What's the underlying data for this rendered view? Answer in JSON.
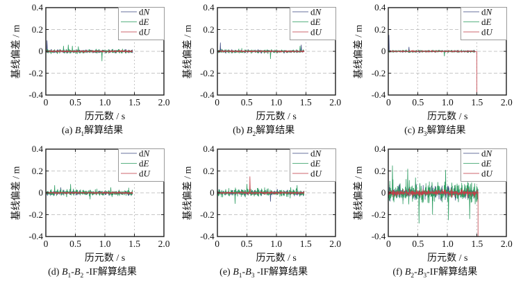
{
  "figure": {
    "ylabel": "基线偏差 / m",
    "xlabel": "历元数 / s",
    "colors": {
      "dN": "#414e85",
      "dE": "#2f9e63",
      "dU": "#c13f48",
      "grid": "#b5b5b5",
      "axis": "#1c1c1c",
      "legend_border": "#999999",
      "background": "#ffffff"
    },
    "axes": {
      "xlim": [
        0,
        2.0
      ],
      "ylim": [
        -0.4,
        0.4
      ],
      "xticks": [
        0,
        0.5,
        1.0,
        1.5,
        2.0
      ],
      "xtick_labels": [
        "0",
        "0.5",
        "1.0",
        "1.5",
        "2.0"
      ],
      "yticks": [
        0.4,
        0.2,
        0,
        -0.2,
        -0.4
      ],
      "ytick_labels": [
        "0.4",
        "0.2",
        "0",
        "-0.2",
        "-0.4"
      ],
      "grid_x": [
        0.5,
        1.0,
        1.5
      ],
      "grid_y": [
        -0.2,
        0,
        0.2
      ],
      "grid_on": true,
      "legend_position": "top-right"
    },
    "legend": [
      [
        {
          "t": "d"
        },
        {
          "t": "N",
          "i": true
        }
      ],
      [
        {
          "t": "d"
        },
        {
          "t": "E",
          "i": true
        }
      ],
      [
        {
          "t": "d"
        },
        {
          "t": "U",
          "i": true
        }
      ]
    ]
  },
  "chart_data": [
    {
      "id": "a",
      "type": "line",
      "caption": [
        {
          "t": "(a) "
        },
        {
          "t": "B",
          "i": true,
          "sub": "1"
        },
        {
          "t": "解算结果"
        }
      ],
      "xlim": [
        0,
        2.0
      ],
      "ylim": [
        -0.4,
        0.4
      ],
      "x_range": [
        0,
        1.47
      ],
      "seed": 3,
      "end_drop": null,
      "series": [
        {
          "name": "dN",
          "amp": 0.016,
          "spikes": [
            [
              0.02,
              0.1
            ]
          ]
        },
        {
          "name": "dE",
          "amp": 0.02,
          "spikes": [
            [
              0.3,
              0.05
            ],
            [
              0.38,
              0.06
            ],
            [
              0.45,
              0.05
            ],
            [
              0.55,
              0.045
            ],
            [
              0.95,
              -0.09
            ]
          ]
        },
        {
          "name": "dU",
          "amp": 0.007,
          "spikes": []
        }
      ]
    },
    {
      "id": "b",
      "type": "line",
      "caption": [
        {
          "t": "(b) "
        },
        {
          "t": "B",
          "i": true,
          "sub": "2"
        },
        {
          "t": "解算结果"
        }
      ],
      "xlim": [
        0,
        2.0
      ],
      "ylim": [
        -0.4,
        0.4
      ],
      "x_range": [
        0,
        1.47
      ],
      "seed": 7,
      "end_drop": null,
      "series": [
        {
          "name": "dN",
          "amp": 0.014,
          "spikes": [
            [
              0.05,
              0.08
            ],
            [
              1.42,
              0.06
            ]
          ]
        },
        {
          "name": "dE",
          "amp": 0.018,
          "spikes": [
            [
              0.9,
              -0.07
            ],
            [
              1.4,
              0.05
            ]
          ]
        },
        {
          "name": "dU",
          "amp": 0.007,
          "spikes": []
        }
      ]
    },
    {
      "id": "c",
      "type": "line",
      "caption": [
        {
          "t": "(c) "
        },
        {
          "t": "B",
          "i": true,
          "sub": "3"
        },
        {
          "t": "解算结果"
        }
      ],
      "xlim": [
        0,
        2.0
      ],
      "ylim": [
        -0.4,
        0.4
      ],
      "x_range": [
        0,
        1.47
      ],
      "seed": 11,
      "end_drop": 1.5,
      "series": [
        {
          "name": "dN",
          "amp": 0.008,
          "spikes": [
            [
              0.01,
              0.15
            ],
            [
              0.35,
              0.04
            ]
          ]
        },
        {
          "name": "dE",
          "amp": 0.011,
          "spikes": [
            [
              0.95,
              -0.045
            ]
          ]
        },
        {
          "name": "dU",
          "amp": 0.005,
          "spikes": []
        }
      ]
    },
    {
      "id": "d",
      "type": "line",
      "caption": [
        {
          "t": "(d) "
        },
        {
          "t": "B",
          "i": true,
          "sub": "1"
        },
        {
          "t": "-"
        },
        {
          "t": "B",
          "i": true,
          "sub": "2"
        },
        {
          "t": " -IF解算结果"
        }
      ],
      "xlim": [
        0,
        2.0
      ],
      "ylim": [
        -0.4,
        0.4
      ],
      "x_range": [
        0,
        1.47
      ],
      "seed": 19,
      "end_drop": null,
      "series": [
        {
          "name": "dN",
          "amp": 0.022,
          "spikes": [
            [
              0.25,
              0.05
            ]
          ]
        },
        {
          "name": "dE",
          "amp": 0.032,
          "spikes": [
            [
              0.15,
              0.07
            ],
            [
              0.42,
              0.08
            ],
            [
              0.75,
              -0.06
            ],
            [
              1.1,
              0.05
            ]
          ]
        },
        {
          "name": "dU",
          "amp": 0.009,
          "spikes": []
        }
      ]
    },
    {
      "id": "e",
      "type": "line",
      "caption": [
        {
          "t": "(e) "
        },
        {
          "t": "B",
          "i": true,
          "sub": "1"
        },
        {
          "t": "-"
        },
        {
          "t": "B",
          "i": true,
          "sub": "3"
        },
        {
          "t": " -IF解算结果"
        }
      ],
      "xlim": [
        0,
        2.0
      ],
      "ylim": [
        -0.4,
        0.4
      ],
      "x_range": [
        0,
        1.47
      ],
      "seed": 23,
      "end_drop": null,
      "series": [
        {
          "name": "dN",
          "amp": 0.026,
          "spikes": [
            [
              0.9,
              -0.08
            ]
          ]
        },
        {
          "name": "dE",
          "amp": 0.038,
          "spikes": [
            [
              0.3,
              -0.1
            ],
            [
              0.5,
              0.08
            ],
            [
              1.35,
              0.07
            ]
          ]
        },
        {
          "name": "dU",
          "amp": 0.011,
          "spikes": [
            [
              0.55,
              0.15
            ]
          ]
        }
      ]
    },
    {
      "id": "f",
      "type": "line",
      "caption": [
        {
          "t": "(f) "
        },
        {
          "t": "B",
          "i": true,
          "sub": "2"
        },
        {
          "t": "-"
        },
        {
          "t": "B",
          "i": true,
          "sub": "3"
        },
        {
          "t": "-IF解算结果"
        }
      ],
      "xlim": [
        0,
        2.0
      ],
      "ylim": [
        -0.4,
        0.4
      ],
      "x_range": [
        0,
        1.52
      ],
      "seed": 29,
      "end_drop": 1.52,
      "series": [
        {
          "name": "dN",
          "amp": 0.065,
          "spikes": []
        },
        {
          "name": "dE",
          "amp": 0.105,
          "spikes": [
            [
              0.07,
              0.25
            ],
            [
              0.33,
              0.22
            ],
            [
              0.52,
              -0.28
            ],
            [
              0.75,
              -0.2
            ],
            [
              0.97,
              0.21
            ],
            [
              1.02,
              -0.25
            ],
            [
              1.38,
              -0.24
            ]
          ]
        },
        {
          "name": "dU",
          "amp": 0.032,
          "spikes": []
        }
      ]
    }
  ]
}
